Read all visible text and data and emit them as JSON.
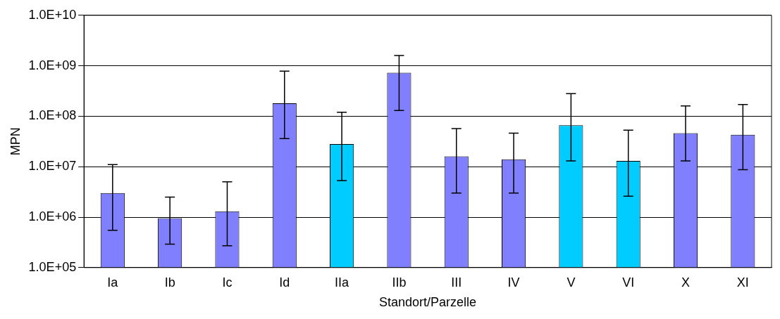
{
  "chart_data": {
    "type": "bar",
    "xlabel": "Standort/Parzelle",
    "ylabel": "MPN",
    "categories": [
      "Ia",
      "Ib",
      "Ic",
      "Id",
      "IIa",
      "IIb",
      "III",
      "IV",
      "V",
      "VI",
      "X",
      "XI"
    ],
    "values": [
      3000000.0,
      950000.0,
      1300000.0,
      180000000.0,
      28000000.0,
      730000000.0,
      16000000.0,
      14000000.0,
      66000000.0,
      13000000.0,
      46000000.0,
      43000000.0
    ],
    "colors": [
      "#8080ff",
      "#8080ff",
      "#8080ff",
      "#8080ff",
      "#00ccff",
      "#8080ff",
      "#8080ff",
      "#8080ff",
      "#00ccff",
      "#00ccff",
      "#8080ff",
      "#8080ff"
    ],
    "errors": [
      [
        550000.0,
        11000000.0
      ],
      [
        290000.0,
        2500000.0
      ],
      [
        270000.0,
        5000000.0
      ],
      [
        36000000.0,
        780000000.0
      ],
      [
        5300000.0,
        120000000.0
      ],
      [
        130000000.0,
        1600000000.0
      ],
      [
        3000000.0,
        57000000.0
      ],
      [
        3000000.0,
        46000000.0
      ],
      [
        13000000.0,
        280000000.0
      ],
      [
        2600000.0,
        53000000.0
      ],
      [
        13000000.0,
        160000000.0
      ],
      [
        8700000.0,
        170000000.0
      ]
    ],
    "log": "y",
    "ylim": [
      100000.0,
      10000000000.0
    ],
    "yticks": [
      {
        "value": 100000.0,
        "label": "1.0E+05"
      },
      {
        "value": 1000000.0,
        "label": "1.0E+06"
      },
      {
        "value": 10000000.0,
        "label": "1.0E+07"
      },
      {
        "value": 100000000.0,
        "label": "1.0E+08"
      },
      {
        "value": 1000000000.0,
        "label": "1.0E+09"
      },
      {
        "value": 10000000000.0,
        "label": "1.0E+10"
      }
    ],
    "grid": "y",
    "legend": false
  }
}
